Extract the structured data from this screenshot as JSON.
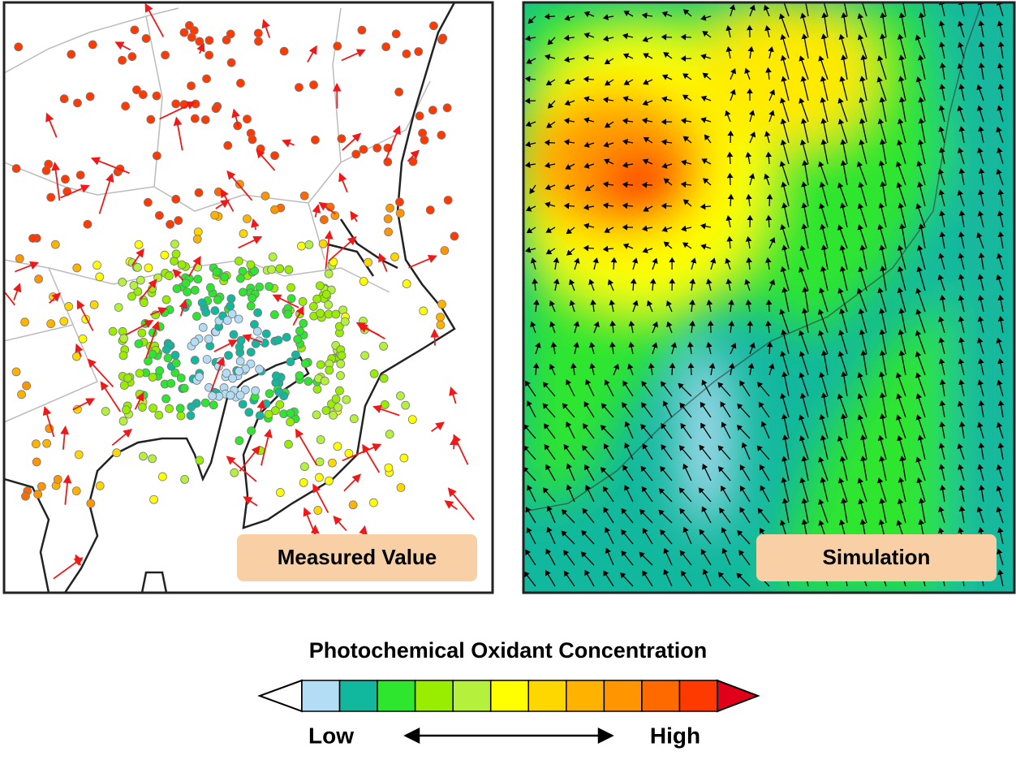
{
  "panels": [
    {
      "label": "Measured Value"
    },
    {
      "label": "Simulation"
    }
  ],
  "legend": {
    "title": "Photochemical Oxidant Concentration",
    "low": "Low",
    "high": "High",
    "colors": [
      "#ffffff",
      "#b3dcf5",
      "#12b89e",
      "#2ee62e",
      "#99ee00",
      "#b4f03c",
      "#ffff00",
      "#ffd700",
      "#ffb300",
      "#ff9500",
      "#ff6a00",
      "#ff3a00",
      "#e0001a"
    ]
  }
}
